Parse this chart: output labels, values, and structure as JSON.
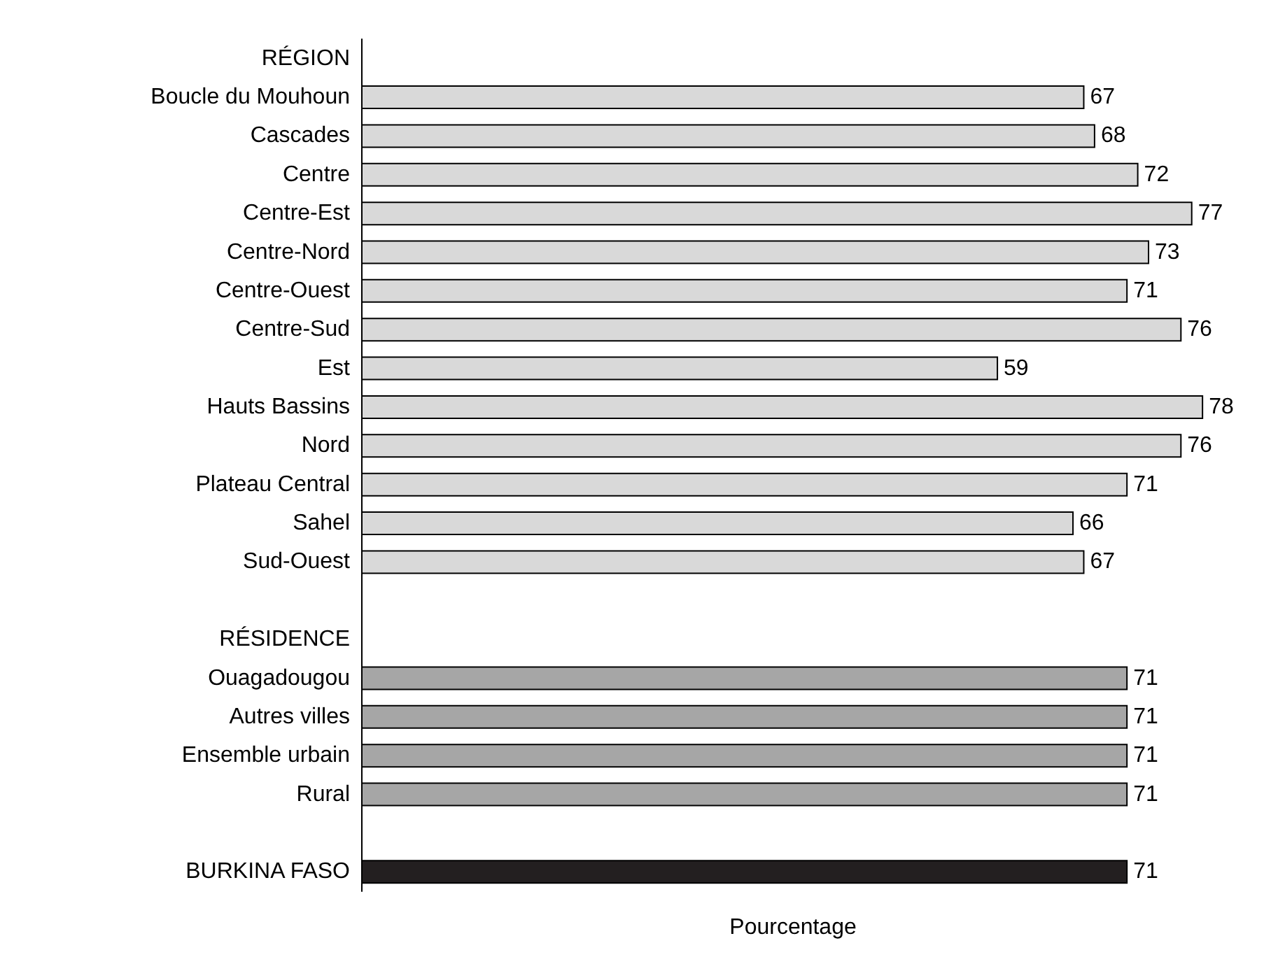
{
  "chart_data": {
    "type": "bar",
    "orientation": "horizontal",
    "xlabel": "Pourcentage",
    "categories": [
      "RÉGION",
      "Boucle du Mouhoun",
      "Cascades",
      "Centre",
      "Centre-Est",
      "Centre-Nord",
      "Centre-Ouest",
      "Centre-Sud",
      "Est",
      "Hauts Bassins",
      "Nord",
      "Plateau Central",
      "Sahel",
      "Sud-Ouest",
      null,
      "RÉSIDENCE",
      "Ouagadougou",
      "Autres villes",
      "Ensemble urbain",
      "Rural",
      null,
      "BURKINA FASO"
    ],
    "values": [
      null,
      67,
      68,
      72,
      77,
      73,
      71,
      76,
      59,
      78,
      76,
      71,
      66,
      67,
      null,
      null,
      71,
      71,
      71,
      71,
      null,
      71
    ],
    "colors": [
      null,
      "#d9d9d9",
      "#d9d9d9",
      "#d9d9d9",
      "#d9d9d9",
      "#d9d9d9",
      "#d9d9d9",
      "#d9d9d9",
      "#d9d9d9",
      "#d9d9d9",
      "#d9d9d9",
      "#d9d9d9",
      "#d9d9d9",
      "#d9d9d9",
      null,
      null,
      "#a6a6a6",
      "#a6a6a6",
      "#a6a6a6",
      "#a6a6a6",
      null,
      "#231f20"
    ],
    "data_labels": true,
    "grid": false
  }
}
